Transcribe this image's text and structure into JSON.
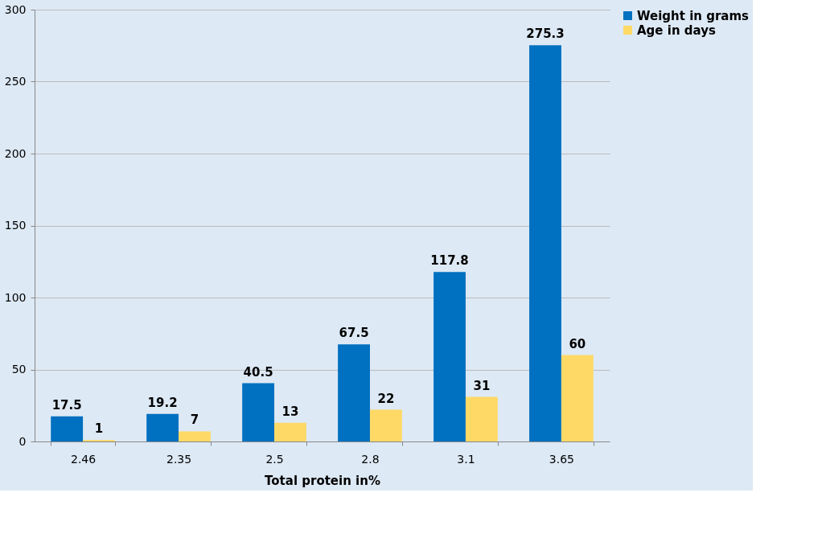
{
  "chart_data": {
    "type": "bar",
    "xlabel": "Total protein in%",
    "categories": [
      "2.46",
      "2.35",
      "2.5",
      "2.8",
      "3.1",
      "3.65"
    ],
    "series": [
      {
        "name": "Weight in grams",
        "color": "#0070c0",
        "values": [
          17.5,
          19.2,
          40.5,
          67.5,
          117.8,
          275.3
        ]
      },
      {
        "name": "Age in days",
        "color": "#ffd966",
        "values": [
          1,
          7,
          13,
          22,
          31,
          60
        ]
      }
    ],
    "ylim": [
      0,
      300
    ],
    "yticks": [
      0,
      50,
      100,
      150,
      200,
      250,
      300
    ],
    "grid": "y",
    "legend": "right",
    "data_labels": true
  }
}
